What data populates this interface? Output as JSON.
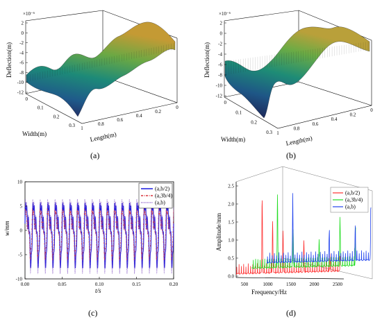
{
  "chart_data": [
    {
      "id": "a",
      "type": "surface3d",
      "panel_label": "(a)",
      "zlabel": "Deflection(m)",
      "xlabel": "Length(m)",
      "ylabel": "Width(m)",
      "z_exponent": "×10⁻⁶",
      "z_ticks": [
        "2",
        "0",
        "-2",
        "-4",
        "-6",
        "-8",
        "-10",
        "-12"
      ],
      "length_ticks": [
        "1",
        "0.8",
        "0.6",
        "0.4",
        "0.2",
        "0"
      ],
      "width_ticks": [
        "0",
        "0.1",
        "0.2",
        "0.3"
      ],
      "zlim": [
        -12,
        2
      ],
      "colormap": [
        "#2a1f5c",
        "#1f5f8b",
        "#1c8a7a",
        "#3aa657",
        "#93b33d",
        "#c9a23a"
      ]
    },
    {
      "id": "b",
      "type": "surface3d",
      "panel_label": "(b)",
      "zlabel": "Deflection(m)",
      "xlabel": "Length(m)",
      "ylabel": "Width(m)",
      "z_exponent": "×10⁻⁶",
      "z_ticks": [
        "2",
        "0",
        "-2",
        "-4",
        "-6",
        "-8",
        "-10",
        "-12"
      ],
      "length_ticks": [
        "1",
        "0.8",
        "0.6",
        "0.4",
        "0.2",
        "0"
      ],
      "width_ticks": [
        "0",
        "0.1",
        "0.2",
        "0.3"
      ],
      "zlim": [
        -12,
        2
      ],
      "colormap": [
        "#2a1f5c",
        "#1f5f8b",
        "#1c8a7a",
        "#3aa657",
        "#93b33d",
        "#c9a23a"
      ]
    },
    {
      "id": "c",
      "type": "line",
      "panel_label": "(c)",
      "xlabel": "t/s",
      "ylabel": "w/mm",
      "xlim": [
        0,
        0.2
      ],
      "ylim": [
        -10,
        10
      ],
      "x_ticks": [
        "0.00",
        "0.05",
        "0.10",
        "0.15",
        "0.20"
      ],
      "y_ticks": [
        "10",
        "5",
        "0",
        "-5",
        "-10"
      ],
      "period": 0.01,
      "series": [
        {
          "name": "(a,b/2)",
          "color": "#1a1adf",
          "style": "solid",
          "amplitude": 7.0,
          "phase": 0.0
        },
        {
          "name": "(a,3b/4)",
          "color": "#d9323a",
          "style": "dashdot",
          "amplitude": 5.5,
          "phase": 0.4
        },
        {
          "name": "(a,b)",
          "color": "#8a5cc7",
          "style": "dot",
          "amplitude": 8.0,
          "phase": 0.2
        }
      ]
    },
    {
      "id": "d",
      "type": "line3d",
      "panel_label": "(d)",
      "xlabel": "Frequency/Hz",
      "ylabel": "Amplitude/mm",
      "xlim": [
        500,
        2500
      ],
      "zlim": [
        0,
        2.5
      ],
      "x_ticks": [
        "500",
        "1000",
        "1500",
        "2000",
        "2500"
      ],
      "z_ticks": [
        "2.5",
        "2.0",
        "1.5",
        "1.0",
        "0.5",
        "0.0"
      ],
      "series": [
        {
          "name": "(a,b/2)",
          "color": "#ff3030",
          "peaks": [
            [
              1000,
              2.1
            ],
            [
              1200,
              1.5
            ],
            [
              1400,
              1.2
            ],
            [
              1800,
              0.9
            ],
            [
              2300,
              0.5
            ],
            [
              2500,
              0.4
            ]
          ]
        },
        {
          "name": "(a,3b/4)",
          "color": "#22dd22",
          "peaks": [
            [
              1000,
              2.1
            ],
            [
              1300,
              1.1
            ],
            [
              1800,
              0.8
            ],
            [
              2200,
              1.4
            ],
            [
              2500,
              1.1
            ]
          ]
        },
        {
          "name": "(a,b)",
          "color": "#2244ee",
          "peaks": [
            [
              1000,
              1.7
            ],
            [
              1700,
              0.8
            ],
            [
              2200,
              1.0
            ],
            [
              2500,
              1.5
            ]
          ]
        }
      ]
    }
  ]
}
